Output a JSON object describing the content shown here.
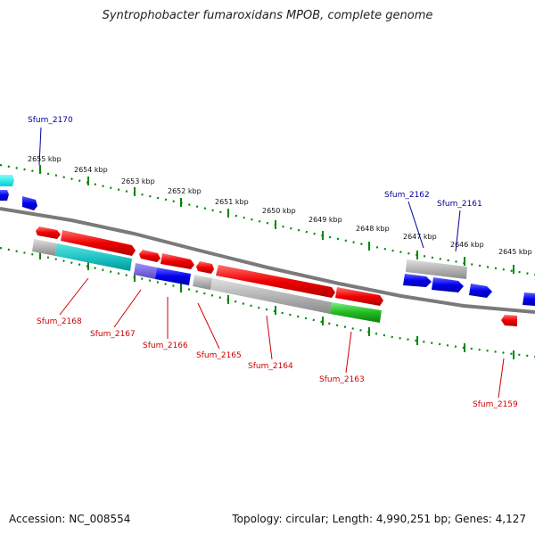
{
  "title": "Syntrophobacter fumaroxidans MPOB, complete genome",
  "footer": {
    "accession": "Accession: NC_008554",
    "topology": "Topology: circular; Length: 4,990,251 bp; Genes: 4,127"
  },
  "colors": {
    "forward_gene": "#ff0000",
    "reverse_gene": "#0000ff",
    "forward_label": "#cc0000",
    "reverse_label": "#000099",
    "tick": "#008000",
    "backbone": "#808080",
    "cds_grey": "#b0b0b0",
    "cds_cyan": "#00bfbf",
    "cds_blue": "#0000dd",
    "cds_violet": "#6f5fd0",
    "cds_green": "#22bb22"
  },
  "kbp_labels": [
    "2655 kbp",
    "2654 kbp",
    "2653 kbp",
    "2652 kbp",
    "2651 kbp",
    "2650 kbp",
    "2649 kbp",
    "2648 kbp",
    "2647 kbp",
    "2646 kbp",
    "2645 kbp"
  ],
  "top_labels": [
    "Sfum_2170",
    "Sfum_2162",
    "Sfum_2161"
  ],
  "bottom_labels": [
    "Sfum_2168",
    "Sfum_2167",
    "Sfum_2166",
    "Sfum_2165",
    "Sfum_2164",
    "Sfum_2163",
    "Sfum_2159"
  ]
}
